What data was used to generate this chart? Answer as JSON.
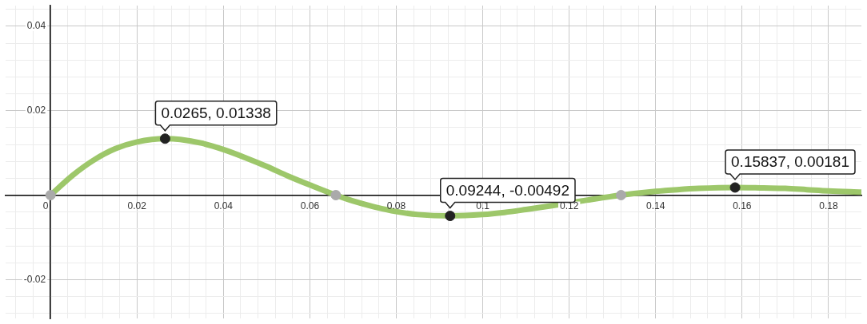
{
  "chart_data": {
    "type": "line",
    "xlim": [
      -0.0104,
      0.1876
    ],
    "ylim": [
      -0.0292,
      0.0449
    ],
    "xticks": [
      {
        "value": -0.008,
        "label": null
      },
      {
        "value": -0.004,
        "label": null
      },
      {
        "value": 0,
        "label": "0"
      },
      {
        "value": 0.004,
        "label": null
      },
      {
        "value": 0.008,
        "label": null
      },
      {
        "value": 0.012,
        "label": null
      },
      {
        "value": 0.016,
        "label": null
      },
      0.02,
      {
        "value": 0.024,
        "label": null
      },
      {
        "value": 0.028,
        "label": null
      },
      {
        "value": 0.032,
        "label": null
      },
      {
        "value": 0.036,
        "label": null
      },
      0.04,
      {
        "value": 0.044,
        "label": null
      },
      {
        "value": 0.048,
        "label": null
      },
      {
        "value": 0.052,
        "label": null
      },
      {
        "value": 0.056,
        "label": null
      },
      0.06,
      {
        "value": 0.064,
        "label": null
      },
      {
        "value": 0.068,
        "label": null
      },
      {
        "value": 0.072,
        "label": null
      },
      {
        "value": 0.076,
        "label": null
      },
      0.08,
      {
        "value": 0.084,
        "label": null
      },
      {
        "value": 0.088,
        "label": null
      },
      {
        "value": 0.092,
        "label": null
      },
      {
        "value": 0.096,
        "label": null
      },
      0.1,
      {
        "value": 0.104,
        "label": null
      },
      {
        "value": 0.108,
        "label": null
      },
      {
        "value": 0.112,
        "label": null
      },
      {
        "value": 0.116,
        "label": null
      },
      0.12,
      {
        "value": 0.124,
        "label": null
      },
      {
        "value": 0.128,
        "label": null
      },
      {
        "value": 0.132,
        "label": null
      },
      {
        "value": 0.136,
        "label": null
      },
      0.14,
      {
        "value": 0.144,
        "label": null
      },
      {
        "value": 0.148,
        "label": null
      },
      {
        "value": 0.152,
        "label": null
      },
      {
        "value": 0.156,
        "label": null
      },
      0.16,
      {
        "value": 0.164,
        "label": null
      },
      {
        "value": 0.168,
        "label": null
      },
      {
        "value": 0.172,
        "label": null
      },
      {
        "value": 0.176,
        "label": null
      },
      0.18,
      {
        "value": 0.184,
        "label": null
      }
    ],
    "yticks": [
      {
        "value": -0.028,
        "label": null
      },
      {
        "value": -0.024,
        "label": null
      },
      -0.02,
      {
        "value": -0.016,
        "label": null
      },
      {
        "value": -0.012,
        "label": null
      },
      {
        "value": -0.008,
        "label": null
      },
      {
        "value": -0.004,
        "label": null
      },
      {
        "value": 0,
        "label": null
      },
      {
        "value": 0.004,
        "label": null
      },
      {
        "value": 0.008,
        "label": null
      },
      {
        "value": 0.012,
        "label": null
      },
      {
        "value": 0.016,
        "label": null
      },
      0.02,
      {
        "value": 0.024,
        "label": null
      },
      {
        "value": 0.028,
        "label": null
      },
      {
        "value": 0.032,
        "label": null
      },
      {
        "value": 0.036,
        "label": null
      },
      0.04,
      {
        "value": 0.044,
        "label": null
      }
    ],
    "grid": true,
    "legend": false,
    "series": [
      {
        "type": "line",
        "color": "#9dc76a",
        "marker": "none",
        "x": [
          0,
          0.005,
          0.01,
          0.015,
          0.02,
          0.0265,
          0.03,
          0.035,
          0.04,
          0.045,
          0.05,
          0.055,
          0.06,
          0.066,
          0.07,
          0.075,
          0.08,
          0.085,
          0.09244,
          0.1,
          0.105,
          0.11,
          0.116,
          0.124,
          0.132,
          0.14,
          0.145,
          0.15,
          0.15837,
          0.165,
          0.17,
          0.175,
          0.18,
          0.1876
        ],
        "values": [
          0,
          0.0046,
          0.0083,
          0.011,
          0.0126,
          0.01338,
          0.0132,
          0.0123,
          0.0108,
          0.0089,
          0.0068,
          0.0045,
          0.0024,
          0,
          -0.0014,
          -0.0028,
          -0.0039,
          -0.0046,
          -0.00492,
          -0.0046,
          -0.0041,
          -0.0034,
          -0.0025,
          -0.0012,
          0,
          0.0009,
          0.0013,
          0.0016,
          0.00181,
          0.0017,
          0.0016,
          0.0013,
          0.001,
          0.0007
        ]
      },
      {
        "type": "scatter",
        "color": "#aaaaaa",
        "marker": "circle",
        "x": [
          0,
          0.066,
          0.132
        ],
        "values": [
          0,
          0,
          0
        ]
      },
      {
        "type": "scatter",
        "color": "#222222",
        "marker": "circle",
        "x": [
          0.0265,
          0.09244,
          0.15837
        ],
        "values": [
          0.01338,
          -0.00492,
          0.00181
        ]
      }
    ],
    "annotations": [
      {
        "text": "0.0265, 0.01338",
        "x": 0.0265,
        "y": 0.01338
      },
      {
        "text": "0.09244, -0.00492",
        "x": 0.09244,
        "y": -0.00492
      },
      {
        "text": "0.15837, 0.00181",
        "x": 0.15837,
        "y": 0.00181
      }
    ]
  }
}
